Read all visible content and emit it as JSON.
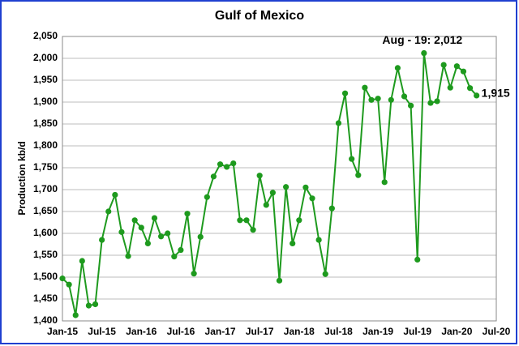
{
  "chart_data": {
    "type": "line",
    "title": "Gulf of Mexico",
    "y_label": "Production kb/d",
    "categories": [
      "Jan-15",
      null,
      null,
      null,
      null,
      null,
      "Jul-15",
      null,
      null,
      null,
      null,
      null,
      "Jan-16",
      null,
      null,
      null,
      null,
      null,
      "Jul-16",
      null,
      null,
      null,
      null,
      null,
      "Jan-17",
      null,
      null,
      null,
      null,
      null,
      "Jul-17",
      null,
      null,
      null,
      null,
      null,
      "Jan-18",
      null,
      null,
      null,
      null,
      null,
      "Jul-18",
      null,
      null,
      null,
      null,
      null,
      "Jan-19",
      null,
      null,
      null,
      null,
      null,
      "Jul-19",
      null,
      null,
      null,
      null,
      null,
      "Jan-20",
      null,
      null,
      null,
      null,
      null,
      "Jul-20"
    ],
    "values": [
      1497,
      1483,
      1413,
      1537,
      1435,
      1438,
      1585,
      1650,
      1688,
      1603,
      1548,
      1630,
      1613,
      1577,
      1635,
      1593,
      1600,
      1547,
      1562,
      1645,
      1508,
      1592,
      1683,
      1730,
      1758,
      1752,
      1760,
      1630,
      1630,
      1608,
      1732,
      1665,
      1693,
      1492,
      1706,
      1577,
      1630,
      1705,
      1680,
      1585,
      1507,
      1657,
      1852,
      1920,
      1770,
      1733,
      1933,
      1905,
      1908,
      1717,
      1905,
      1978,
      1913,
      1892,
      1540,
      2012,
      1898,
      1902,
      1985,
      1933,
      1982,
      1970,
      1932,
      1915,
      null,
      null,
      null
    ],
    "color": "#1e9a1e",
    "ylim": [
      1400,
      2050
    ],
    "yticks": [
      {
        "value": 1400,
        "label": "1,400"
      },
      {
        "value": 1450,
        "label": "1,450"
      },
      {
        "value": 1500,
        "label": "1,500"
      },
      {
        "value": 1550,
        "label": "1,550"
      },
      {
        "value": 1600,
        "label": "1,600"
      },
      {
        "value": 1650,
        "label": "1,650"
      },
      {
        "value": 1700,
        "label": "1,700"
      },
      {
        "value": 1750,
        "label": "1,750"
      },
      {
        "value": 1800,
        "label": "1,800"
      },
      {
        "value": 1850,
        "label": "1,850"
      },
      {
        "value": 1900,
        "label": "1,900"
      },
      {
        "value": 1950,
        "label": "1,950"
      },
      {
        "value": 2000,
        "label": "2,000"
      },
      {
        "value": 2050,
        "label": "2,050"
      }
    ],
    "grid": true,
    "annotations": [
      "Aug - 19: 2,012",
      "1,915"
    ]
  }
}
